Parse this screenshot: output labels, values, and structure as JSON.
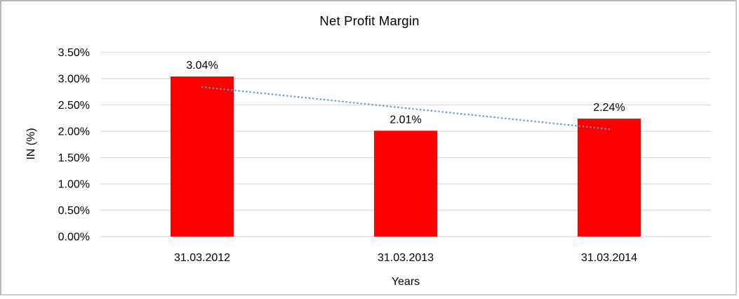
{
  "figure": {
    "type_hint": "embedded-excel-chart",
    "background": "#ffffff",
    "frame_border_color": "#cbcbcb"
  },
  "chart_data": {
    "type": "bar",
    "title": "Net Profit Margin",
    "xlabel": "Years",
    "ylabel": "IN (%)",
    "categories": [
      "31.03.2012",
      "31.03.2013",
      "31.03.2014"
    ],
    "values": [
      3.04,
      2.01,
      2.24
    ],
    "data_labels": [
      "3.04%",
      "2.01%",
      "2.24%"
    ],
    "ylim": [
      0,
      3.5
    ],
    "ytick_step": 0.5,
    "ytick_labels": [
      "0.00%",
      "0.50%",
      "1.00%",
      "1.50%",
      "2.00%",
      "2.50%",
      "3.00%",
      "3.50%"
    ],
    "grid": "horizontal",
    "gridline_color": "#d9d9d9",
    "legend": "none",
    "bar_color": "#ff0000",
    "trendline": {
      "kind": "linear",
      "style": "dotted",
      "color": "#5b9bd5",
      "start_value": 2.84,
      "end_value": 2.04
    }
  }
}
